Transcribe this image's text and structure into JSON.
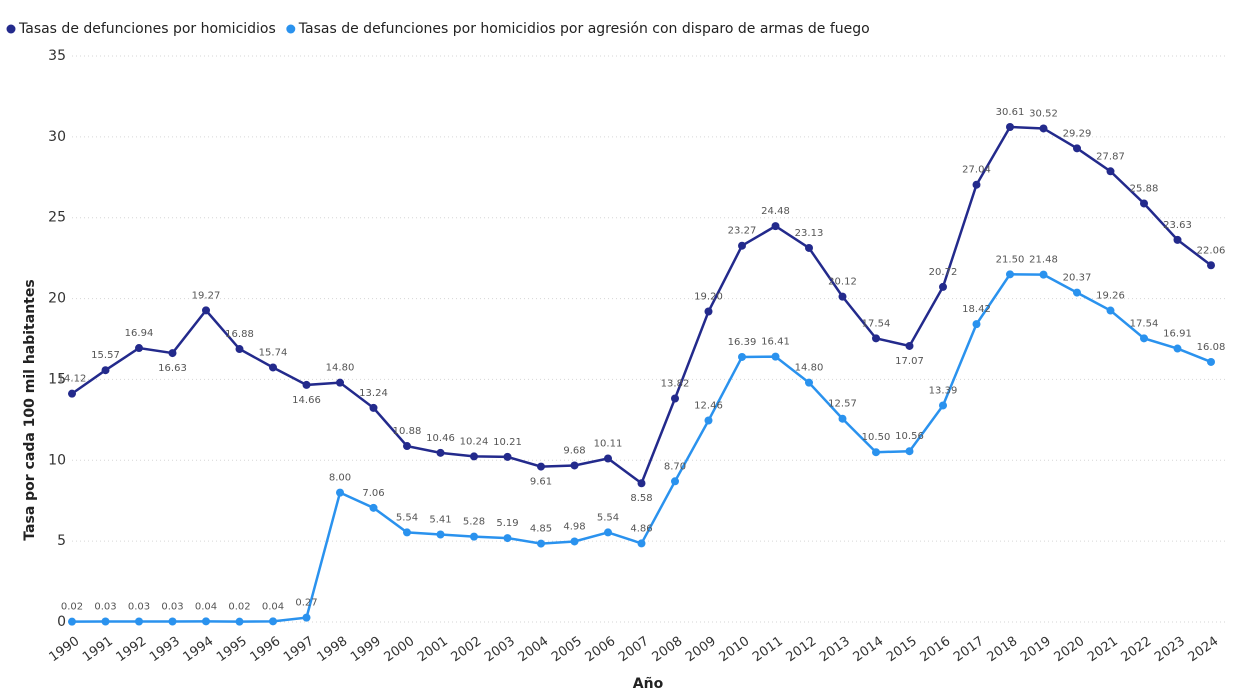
{
  "chart_data": {
    "type": "line",
    "y_label": "Tasa por cada 100 mil habitantes",
    "x_label": "Año",
    "categories": [
      "1990",
      "1991",
      "1992",
      "1993",
      "1994",
      "1995",
      "1996",
      "1997",
      "1998",
      "1999",
      "2000",
      "2001",
      "2002",
      "2003",
      "2004",
      "2005",
      "2006",
      "2007",
      "2008",
      "2009",
      "2010",
      "2011",
      "2012",
      "2013",
      "2014",
      "2015",
      "2016",
      "2017",
      "2018",
      "2019",
      "2020",
      "2021",
      "2022",
      "2023",
      "2024"
    ],
    "series": [
      {
        "name": "Tasas de defunciones por homicidios",
        "color": "#232a8c",
        "values": [
          14.12,
          15.57,
          16.94,
          16.63,
          19.27,
          16.88,
          15.74,
          14.66,
          14.8,
          13.24,
          10.88,
          10.46,
          10.24,
          10.21,
          9.61,
          9.68,
          10.11,
          8.58,
          13.82,
          19.2,
          23.27,
          24.48,
          23.13,
          20.12,
          17.54,
          17.07,
          20.72,
          27.04,
          30.61,
          30.52,
          29.29,
          27.87,
          25.88,
          23.63,
          22.06
        ],
        "value_labels": [
          "14.12",
          "15.57",
          "16.94",
          "16.63",
          "19.27",
          "16.88",
          "15.74",
          "14.66",
          "14.80",
          "13.24",
          "10.88",
          "10.46",
          "10.24",
          "10.21",
          "9.61",
          "9.68",
          "10.11",
          "8.58",
          "13.82",
          "19.20",
          "23.27",
          "24.48",
          "23.13",
          "20.12",
          "17.54",
          "17.07",
          "20.72",
          "27.04",
          "30.61",
          "30.52",
          "29.29",
          "27.87",
          "25.88",
          "23.63",
          "22.06"
        ]
      },
      {
        "name": "Tasas de defunciones por homicidios por agresión con disparo de armas de fuego",
        "color": "#2a92ee",
        "values": [
          0.02,
          0.03,
          0.03,
          0.03,
          0.04,
          0.02,
          0.04,
          0.27,
          8.0,
          7.06,
          5.54,
          5.41,
          5.28,
          5.19,
          4.85,
          4.98,
          5.54,
          4.86,
          8.7,
          12.46,
          16.39,
          16.41,
          14.8,
          12.57,
          10.5,
          10.56,
          13.39,
          18.42,
          21.5,
          21.48,
          20.37,
          19.26,
          17.54,
          16.91,
          16.08
        ],
        "value_labels": [
          "0.02",
          "0.03",
          "0.03",
          "0.03",
          "0.04",
          "0.02",
          "0.04",
          "0.27",
          "8.00",
          "7.06",
          "5.54",
          "5.41",
          "5.28",
          "5.19",
          "4.85",
          "4.98",
          "5.54",
          "4.86",
          "8.70",
          "12.46",
          "16.39",
          "16.41",
          "14.80",
          "12.57",
          "10.50",
          "10.56",
          "13.39",
          "18.42",
          "21.50",
          "21.48",
          "20.37",
          "19.26",
          "17.54",
          "16.91",
          "16.08"
        ]
      }
    ],
    "ylim": [
      0,
      35
    ],
    "yticks": [
      0,
      5,
      10,
      15,
      20,
      25,
      30,
      35
    ],
    "grid": true
  }
}
